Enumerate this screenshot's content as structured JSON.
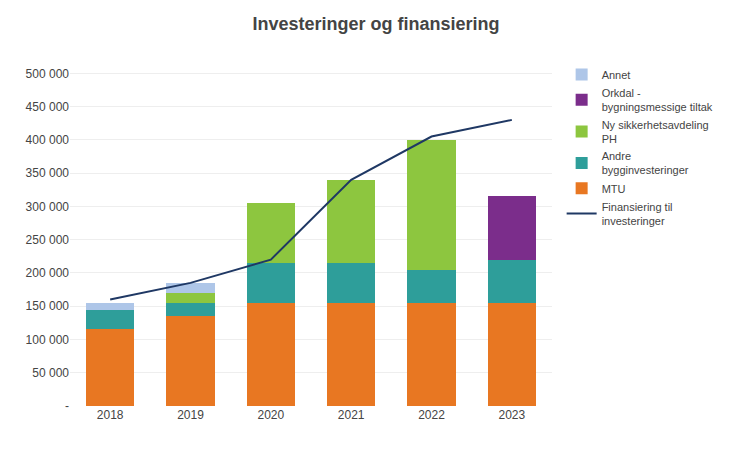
{
  "chart_data": {
    "type": "bar",
    "stacked": true,
    "title": "Investeringer og finansiering",
    "categories": [
      "2018",
      "2019",
      "2020",
      "2021",
      "2022",
      "2023"
    ],
    "series": [
      {
        "name": "MTU",
        "type": "bar",
        "color": "#E87722",
        "values": [
          115000,
          135000,
          155000,
          155000,
          155000,
          155000
        ]
      },
      {
        "name": "Andre\nbygginvesteringer",
        "type": "bar",
        "color": "#2E9E9A",
        "values": [
          30000,
          20000,
          60000,
          60000,
          50000,
          65000
        ]
      },
      {
        "name": "Ny sikkerhetsavdeling\nPH",
        "type": "bar",
        "color": "#8DC63F",
        "values": [
          0,
          15000,
          90000,
          125000,
          195000,
          0
        ]
      },
      {
        "name": "Orkdal -\nbygningsmessige tiltak",
        "type": "bar",
        "color": "#7B2D8B",
        "values": [
          0,
          0,
          0,
          0,
          0,
          95000
        ]
      },
      {
        "name": "Annet",
        "type": "bar",
        "color": "#AEC6E8",
        "values": [
          10000,
          15000,
          0,
          0,
          0,
          0
        ]
      },
      {
        "name": "Finansiering til\ninvesteringer",
        "type": "line",
        "color": "#1F3864",
        "values": [
          160000,
          185000,
          220000,
          340000,
          405000,
          430000
        ]
      }
    ],
    "ylim": [
      0,
      520000
    ],
    "yticks": [
      {
        "value": 0,
        "label": "-"
      },
      {
        "value": 50000,
        "label": "50 000"
      },
      {
        "value": 100000,
        "label": "100 000"
      },
      {
        "value": 150000,
        "label": "150 000"
      },
      {
        "value": 200000,
        "label": "200 000"
      },
      {
        "value": 250000,
        "label": "250 000"
      },
      {
        "value": 300000,
        "label": "300 000"
      },
      {
        "value": 350000,
        "label": "350 000"
      },
      {
        "value": 400000,
        "label": "400 000"
      },
      {
        "value": 450000,
        "label": "450 000"
      },
      {
        "value": 500000,
        "label": "500 000"
      }
    ],
    "grid": true,
    "legend": "right"
  }
}
